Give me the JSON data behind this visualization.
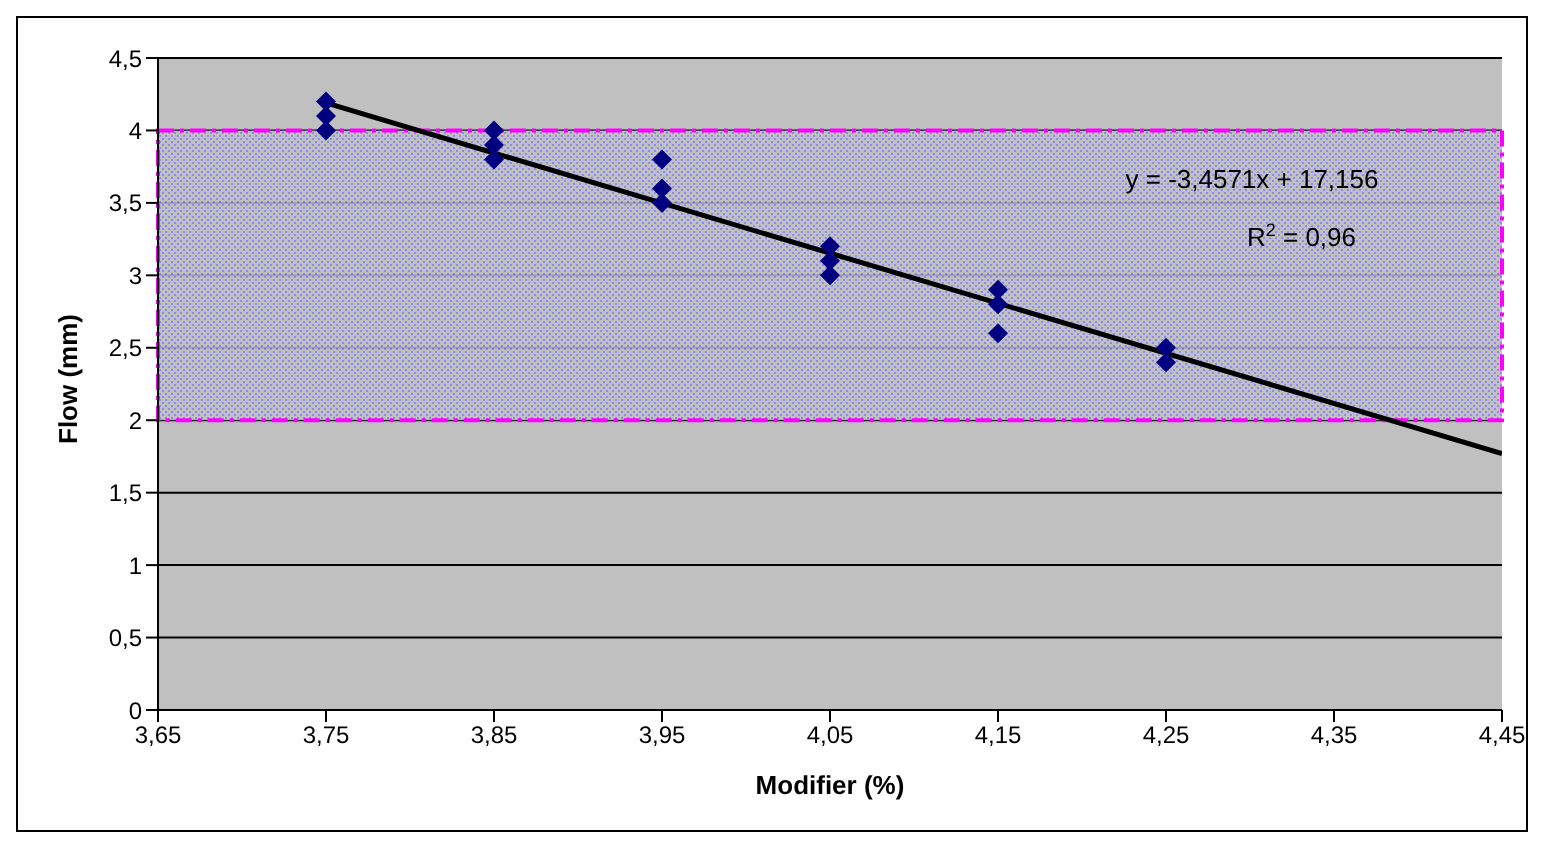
{
  "chart_data": {
    "type": "scatter",
    "xlabel": "Modifier (%)",
    "ylabel": "Flow (mm)",
    "annotations": [
      "y = -3,4571x + 17,156",
      "R$^{2}$ = 0,96"
    ],
    "xlim": [
      3.65,
      4.45
    ],
    "xticks": [
      {
        "value": 3.65,
        "label": "3,65"
      },
      {
        "value": 3.75,
        "label": "3,75"
      },
      {
        "value": 3.85,
        "label": "3,85"
      },
      {
        "value": 3.95,
        "label": "3,95"
      },
      {
        "value": 4.05,
        "label": "4,05"
      },
      {
        "value": 4.15,
        "label": "4,15"
      },
      {
        "value": 4.25,
        "label": "4,25"
      },
      {
        "value": 4.35,
        "label": "4,35"
      },
      {
        "value": 4.45,
        "label": "4,45"
      }
    ],
    "ylim": [
      0,
      4.5
    ],
    "yticks": [
      0,
      {
        "value": 0.5,
        "label": "0,5"
      },
      1,
      {
        "value": 1.5,
        "label": "1,5"
      },
      2,
      {
        "value": 2.5,
        "label": "2,5"
      },
      3,
      {
        "value": 3.5,
        "label": "3,5"
      },
      4,
      {
        "value": 4.5,
        "label": "4,5"
      }
    ],
    "grid": "y",
    "legend": false,
    "bands": [
      {
        "axis": "y",
        "from": 2,
        "to": 4,
        "color": "#ff00ff"
      }
    ],
    "series": [
      {
        "marker": "diamond",
        "color": "#000080",
        "x": [
          3.75,
          3.75,
          3.75,
          3.85,
          3.85,
          3.85,
          3.95,
          3.95,
          3.95,
          4.05,
          4.05,
          4.05,
          4.15,
          4.15,
          4.15,
          4.25,
          4.25
        ],
        "values": [
          4.2,
          4.1,
          4.0,
          4.0,
          3.9,
          3.8,
          3.8,
          3.6,
          3.5,
          3.2,
          3.1,
          3.0,
          2.9,
          2.8,
          2.6,
          2.5,
          2.4
        ]
      },
      {
        "type": "line",
        "marker": "none",
        "color": "#000000",
        "x": [
          3.75,
          4.45
        ],
        "values": [
          4.19,
          1.77
        ]
      }
    ]
  }
}
